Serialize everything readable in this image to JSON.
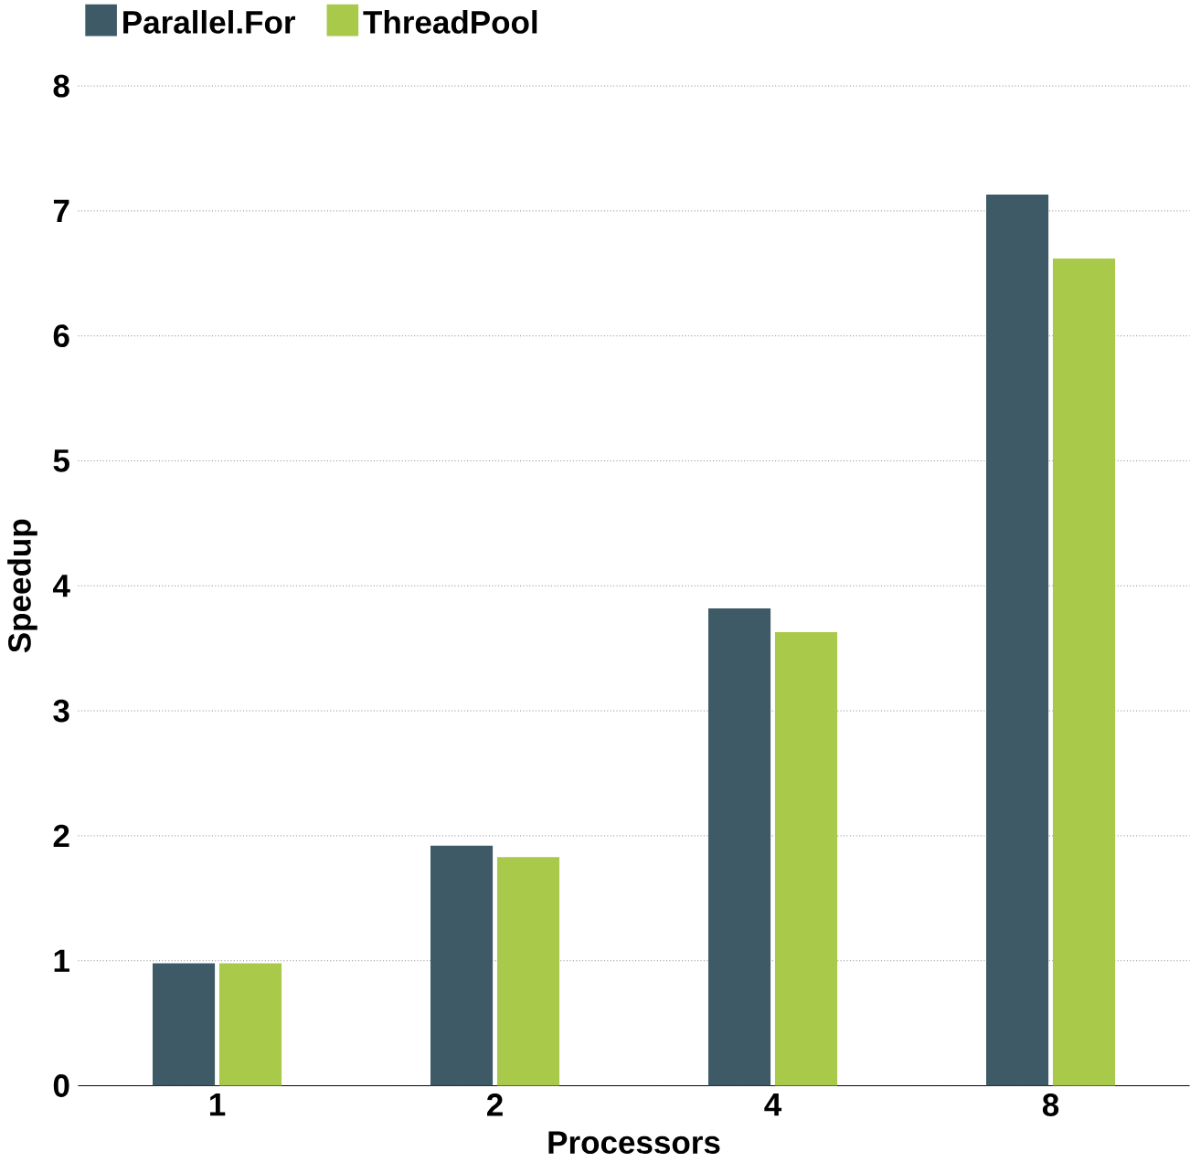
{
  "chart_data": {
    "type": "bar",
    "xlabel": "Processors",
    "ylabel": "Speedup",
    "categories": [
      "1",
      "2",
      "4",
      "8"
    ],
    "series": [
      {
        "name": "Parallel.For",
        "color": "#3d5a66",
        "values": [
          0.98,
          1.92,
          3.82,
          7.13
        ]
      },
      {
        "name": "ThreadPool",
        "color": "#a8c94a",
        "values": [
          0.98,
          1.83,
          3.63,
          6.62
        ]
      }
    ],
    "ylim": [
      0,
      8
    ],
    "yticks": [
      0,
      1,
      2,
      3,
      4,
      5,
      6,
      7,
      8
    ],
    "grid": "y",
    "legend": "top left"
  }
}
